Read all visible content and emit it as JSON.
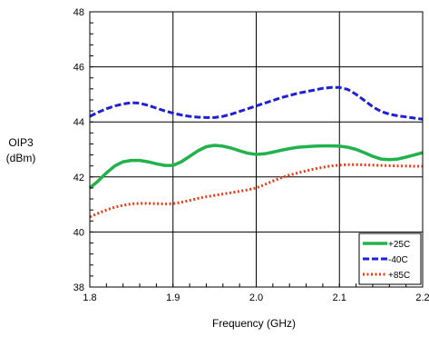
{
  "chart_data": {
    "type": "line",
    "title": "",
    "xlabel": "Frequency (GHz)",
    "ylabel_line1": "OIP3",
    "ylabel_line2": "(dBm)",
    "xlim": [
      1.8,
      2.2
    ],
    "ylim": [
      38,
      48
    ],
    "x_ticks": [
      1.8,
      1.9,
      2.0,
      2.1,
      2.2
    ],
    "x_tick_labels": [
      "1.8",
      "1.9",
      "2.0",
      "2.1",
      "2.2"
    ],
    "y_ticks": [
      38,
      40,
      42,
      44,
      46,
      48
    ],
    "y_tick_labels": [
      "38",
      "40",
      "42",
      "44",
      "46",
      "48"
    ],
    "grid": true,
    "legend_position": "bottom-right",
    "series": [
      {
        "name": "+25C",
        "color": "#22b24c",
        "style": "solid",
        "x": [
          1.8,
          1.81,
          1.82,
          1.83,
          1.84,
          1.85,
          1.86,
          1.87,
          1.88,
          1.89,
          1.9,
          1.91,
          1.92,
          1.93,
          1.94,
          1.95,
          1.96,
          1.97,
          1.98,
          1.99,
          2.0,
          2.01,
          2.02,
          2.03,
          2.04,
          2.05,
          2.06,
          2.07,
          2.08,
          2.09,
          2.1,
          2.11,
          2.12,
          2.13,
          2.14,
          2.15,
          2.16,
          2.17,
          2.18,
          2.19,
          2.2
        ],
        "y": [
          41.6,
          41.85,
          42.15,
          42.4,
          42.55,
          42.6,
          42.6,
          42.55,
          42.48,
          42.42,
          42.42,
          42.55,
          42.75,
          42.95,
          43.1,
          43.15,
          43.12,
          43.05,
          42.95,
          42.86,
          42.82,
          42.84,
          42.9,
          42.97,
          43.03,
          43.08,
          43.1,
          43.12,
          43.13,
          43.13,
          43.12,
          43.08,
          43.0,
          42.88,
          42.75,
          42.65,
          42.63,
          42.65,
          42.72,
          42.8,
          42.88
        ]
      },
      {
        "name": "-40C",
        "color": "#1f1fd6",
        "style": "dashed",
        "x": [
          1.8,
          1.81,
          1.82,
          1.83,
          1.84,
          1.85,
          1.86,
          1.87,
          1.88,
          1.89,
          1.9,
          1.91,
          1.92,
          1.93,
          1.94,
          1.95,
          1.96,
          1.97,
          1.98,
          1.99,
          2.0,
          2.01,
          2.02,
          2.03,
          2.04,
          2.05,
          2.06,
          2.07,
          2.08,
          2.09,
          2.1,
          2.11,
          2.12,
          2.13,
          2.14,
          2.15,
          2.16,
          2.17,
          2.18,
          2.19,
          2.2
        ],
        "y": [
          44.2,
          44.35,
          44.48,
          44.58,
          44.65,
          44.7,
          44.68,
          44.6,
          44.5,
          44.4,
          44.32,
          44.25,
          44.2,
          44.17,
          44.16,
          44.16,
          44.2,
          44.28,
          44.38,
          44.48,
          44.58,
          44.68,
          44.78,
          44.88,
          44.96,
          45.04,
          45.1,
          45.16,
          45.22,
          45.25,
          45.25,
          45.18,
          45.0,
          44.78,
          44.55,
          44.38,
          44.28,
          44.22,
          44.18,
          44.14,
          44.1
        ]
      },
      {
        "name": "+85C",
        "color": "#ee3a12",
        "style": "dotted",
        "x": [
          1.8,
          1.81,
          1.82,
          1.83,
          1.84,
          1.85,
          1.86,
          1.87,
          1.88,
          1.89,
          1.9,
          1.91,
          1.92,
          1.93,
          1.94,
          1.95,
          1.96,
          1.97,
          1.98,
          1.99,
          2.0,
          2.01,
          2.02,
          2.03,
          2.04,
          2.05,
          2.06,
          2.07,
          2.08,
          2.09,
          2.1,
          2.11,
          2.12,
          2.13,
          2.14,
          2.15,
          2.16,
          2.17,
          2.18,
          2.19,
          2.2
        ],
        "y": [
          40.55,
          40.68,
          40.8,
          40.9,
          40.97,
          41.02,
          41.04,
          41.04,
          41.03,
          41.02,
          41.03,
          41.08,
          41.15,
          41.22,
          41.28,
          41.33,
          41.38,
          41.43,
          41.48,
          41.53,
          41.6,
          41.72,
          41.85,
          41.97,
          42.07,
          42.15,
          42.22,
          42.29,
          42.35,
          42.4,
          42.43,
          42.45,
          42.45,
          42.44,
          42.43,
          42.42,
          42.41,
          42.4,
          42.4,
          42.39,
          42.39
        ]
      }
    ]
  }
}
